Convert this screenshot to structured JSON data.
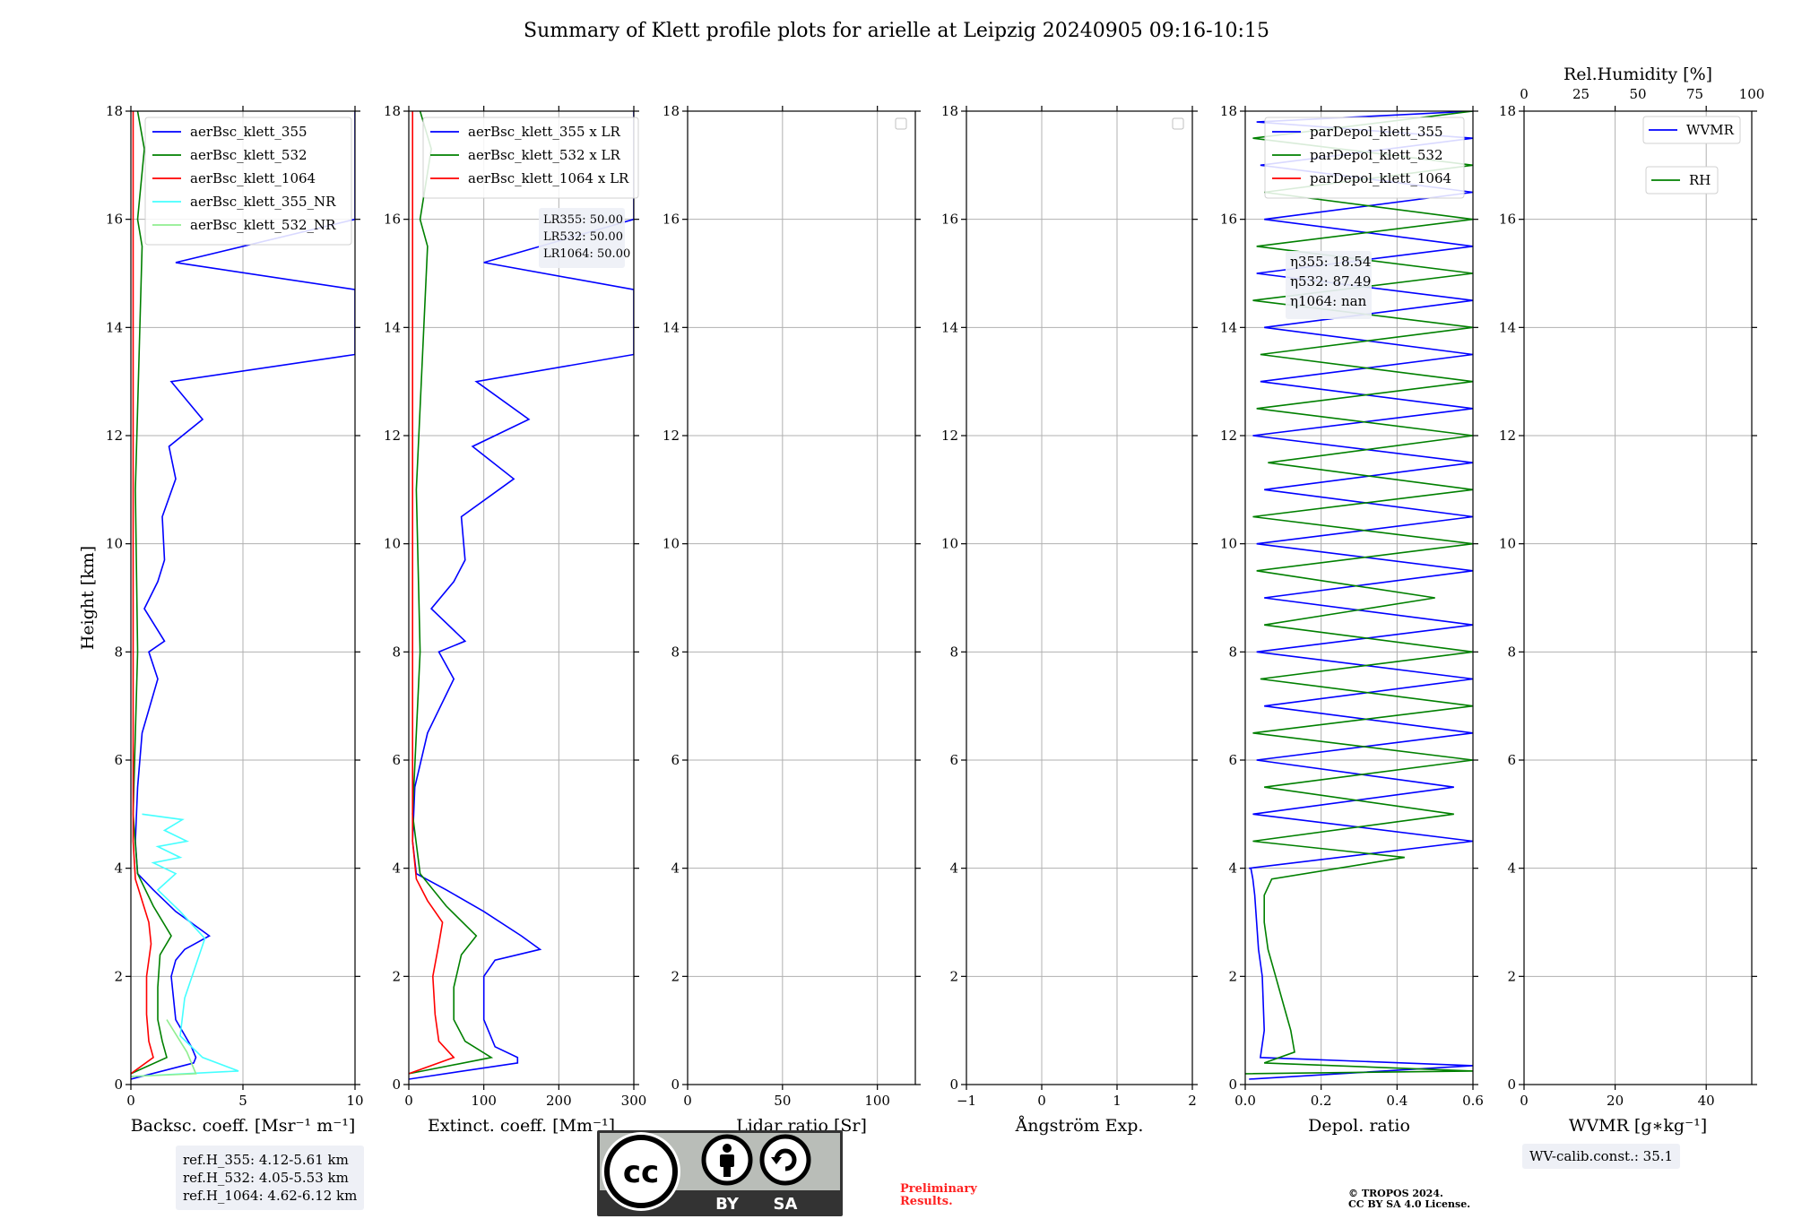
{
  "chart_data": {
    "type": "line",
    "title": "Summary of Klett profile plots for arielle at Leipzig 20240905 09:16-10:15",
    "ylabel": "Height [km]",
    "ylim": [
      0,
      18
    ],
    "yticks": [
      "0",
      "2",
      "4",
      "6",
      "8",
      "10",
      "12",
      "14",
      "16",
      "18"
    ],
    "colors": {
      "c355": "#0000ff",
      "c532": "#008000",
      "c1064": "#ff0000",
      "c355nr": "#44ffff",
      "c532nr": "#90ee90"
    },
    "panels": [
      {
        "id": "bsc",
        "xlabel": "Backsc. coeff. [Msr⁻¹ m⁻¹]",
        "xlim": [
          0,
          10
        ],
        "xticks": [
          "0",
          "5",
          "10"
        ],
        "legend": [
          "aerBsc_klett_355",
          "aerBsc_klett_532",
          "aerBsc_klett_1064",
          "aerBsc_klett_355_NR",
          "aerBsc_klett_532_NR"
        ],
        "series": [
          {
            "name": "aerBsc_klett_355",
            "color": "#0000ff",
            "x": [
              0,
              2.8,
              2.9,
              2.7,
              2.0,
              1.8,
              2.0,
              2.4,
              3.5,
              2.0,
              1.0,
              0.3,
              0.2,
              0.3,
              0.5,
              1.2,
              0.8,
              1.5,
              0.6,
              1.2,
              1.5,
              1.4,
              2.0,
              1.7,
              3.2,
              1.8,
              10,
              10,
              10,
              2.0,
              10,
              10
            ],
            "y": [
              0.1,
              0.4,
              0.5,
              0.7,
              1.2,
              2.0,
              2.3,
              2.5,
              2.75,
              3.2,
              3.6,
              3.9,
              4.5,
              5.5,
              6.5,
              7.5,
              8.0,
              8.2,
              8.8,
              9.3,
              9.7,
              10.5,
              11.2,
              11.8,
              12.3,
              13.0,
              13.5,
              14.0,
              14.7,
              15.2,
              16.0,
              18.0
            ]
          },
          {
            "name": "aerBsc_klett_532",
            "color": "#008000",
            "x": [
              0,
              1.6,
              1.4,
              1.2,
              1.2,
              1.3,
              1.8,
              1.0,
              0.3,
              0.1,
              0.3,
              0.2,
              0.5,
              0.3,
              0.6,
              0.3
            ],
            "y": [
              0.2,
              0.5,
              0.8,
              1.2,
              1.8,
              2.4,
              2.75,
              3.3,
              3.9,
              5.0,
              8.0,
              11.0,
              15.5,
              16.0,
              17.3,
              18.0
            ]
          },
          {
            "name": "aerBsc_klett_1064",
            "color": "#ff0000",
            "x": [
              0,
              1.0,
              0.8,
              0.7,
              0.7,
              0.9,
              0.8,
              0.5,
              0.2,
              0.1,
              0.1
            ],
            "y": [
              0.2,
              0.5,
              0.8,
              1.3,
              2.0,
              2.6,
              3.0,
              3.4,
              3.8,
              4.5,
              18.0
            ]
          },
          {
            "name": "aerBsc_klett_355_NR",
            "color": "#44ffff",
            "x": [
              0,
              4.8,
              3.2,
              2.2,
              2.4,
              3.3,
              2.2,
              1.2,
              2.0,
              1.0,
              2.2,
              1.2,
              2.5,
              1.5,
              2.3,
              0.5
            ],
            "y": [
              0.15,
              0.25,
              0.5,
              0.9,
              1.6,
              2.7,
              3.2,
              3.6,
              3.9,
              4.1,
              4.2,
              4.4,
              4.5,
              4.7,
              4.9,
              5.0
            ]
          },
          {
            "name": "aerBsc_klett_532_NR",
            "color": "#90ee90",
            "x": [
              0,
              2.9,
              2.5,
              1.6
            ],
            "y": [
              0.15,
              0.2,
              0.6,
              1.2
            ]
          }
        ]
      },
      {
        "id": "ext",
        "xlabel": "Extinct. coeff. [Mm⁻¹]",
        "xlim": [
          0,
          300
        ],
        "xticks": [
          "0",
          "100",
          "200",
          "300"
        ],
        "legend": [
          "aerBsc_klett_355 x LR",
          "aerBsc_klett_532 x LR",
          "aerBsc_klett_1064 x LR"
        ],
        "annotation": [
          "LR355: 50.00",
          "LR532: 50.00",
          "LR1064: 50.00"
        ],
        "series": [
          {
            "name": "aerBsc_klett_355 x LR",
            "color": "#0000ff",
            "x": [
              0,
              145,
              145,
              115,
              100,
              100,
              115,
              175,
              150,
              100,
              50,
              10,
              5,
              8,
              25,
              60,
              40,
              75,
              30,
              60,
              75,
              70,
              140,
              85,
              160,
              90,
              300,
              300,
              300,
              100,
              300,
              300
            ],
            "y": [
              0.1,
              0.4,
              0.5,
              0.7,
              1.2,
              2.0,
              2.3,
              2.5,
              2.75,
              3.2,
              3.6,
              3.9,
              4.5,
              5.5,
              6.5,
              7.5,
              8.0,
              8.2,
              8.8,
              9.3,
              9.7,
              10.5,
              11.2,
              11.8,
              12.3,
              13.0,
              13.5,
              14.0,
              14.7,
              15.2,
              16.0,
              18.0
            ]
          },
          {
            "name": "aerBsc_klett_532 x LR",
            "color": "#008000",
            "x": [
              0,
              110,
              75,
              60,
              60,
              70,
              90,
              50,
              15,
              5,
              15,
              10,
              25,
              15,
              30,
              15
            ],
            "y": [
              0.2,
              0.5,
              0.8,
              1.2,
              1.8,
              2.4,
              2.75,
              3.3,
              3.9,
              5.0,
              8.0,
              11.0,
              15.5,
              16.0,
              17.3,
              18.0
            ]
          },
          {
            "name": "aerBsc_klett_1064 x LR",
            "color": "#ff0000",
            "x": [
              0,
              60,
              40,
              35,
              32,
              40,
              45,
              25,
              10,
              5,
              5
            ],
            "y": [
              0.2,
              0.5,
              0.8,
              1.3,
              2.0,
              2.6,
              3.0,
              3.4,
              3.8,
              4.5,
              18.0
            ]
          }
        ]
      },
      {
        "id": "lr",
        "xlabel": "Lidar ratio [Sr]",
        "xlim": [
          0,
          120
        ],
        "xticks": [
          "0",
          "50",
          "100"
        ],
        "legend": [],
        "series": []
      },
      {
        "id": "ang",
        "xlabel": "Ångström Exp.",
        "xlim": [
          -1,
          2
        ],
        "xticks": [
          "−1",
          "0",
          "1",
          "2"
        ],
        "legend": [],
        "series": []
      },
      {
        "id": "dep",
        "xlabel": "Depol. ratio",
        "xlim": [
          0,
          0.6
        ],
        "xticks": [
          "0.0",
          "0.2",
          "0.4",
          "0.6"
        ],
        "legend": [
          "parDepol_klett_355",
          "parDepol_klett_532",
          "parDepol_klett_1064"
        ],
        "annotation": [
          "η355: 18.54",
          "η532: 87.49",
          "η1064: nan"
        ],
        "series": [
          {
            "name": "parDepol_klett_355",
            "color": "#0000ff",
            "x": [
              0.01,
              0.6,
              0.04,
              0.05,
              0.045,
              0.035,
              0.03,
              0.025,
              0.02,
              0.015,
              0.01,
              0.6,
              0.02,
              0.55,
              0.03,
              0.6,
              0.05,
              0.6,
              0.03,
              0.6,
              0.05,
              0.6,
              0.03,
              0.6,
              0.05,
              0.6,
              0.02,
              0.6,
              0.04,
              0.6,
              0.05,
              0.6,
              0.03,
              0.6,
              0.05,
              0.6,
              0.04,
              0.6,
              0.03,
              0.6
            ],
            "y": [
              0.1,
              0.35,
              0.5,
              1.0,
              2.0,
              2.5,
              3.0,
              3.5,
              3.8,
              4.0,
              4.0,
              4.5,
              5.0,
              5.5,
              6.0,
              6.5,
              7.0,
              7.5,
              8.0,
              8.5,
              9.0,
              9.5,
              10.0,
              10.5,
              11.0,
              11.5,
              12.0,
              12.5,
              13.0,
              13.5,
              14.0,
              14.5,
              15.0,
              15.5,
              16.0,
              16.5,
              17.0,
              17.5,
              17.8,
              18.0
            ]
          },
          {
            "name": "parDepol_klett_532",
            "color": "#008000",
            "x": [
              0.0,
              0.6,
              0.05,
              0.13,
              0.12,
              0.1,
              0.08,
              0.06,
              0.05,
              0.05,
              0.07,
              0.42,
              0.02,
              0.55,
              0.05,
              0.6,
              0.02,
              0.6,
              0.04,
              0.6,
              0.05,
              0.5,
              0.03,
              0.6,
              0.02,
              0.6,
              0.06,
              0.6,
              0.03,
              0.6,
              0.04,
              0.6,
              0.02,
              0.6,
              0.03,
              0.6,
              0.05,
              0.6,
              0.02,
              0.6
            ],
            "y": [
              0.2,
              0.25,
              0.4,
              0.6,
              1.0,
              1.5,
              2.0,
              2.5,
              3.0,
              3.5,
              3.8,
              4.2,
              4.5,
              5.0,
              5.5,
              6.0,
              6.5,
              7.0,
              7.5,
              8.0,
              8.5,
              9.0,
              9.5,
              10.0,
              10.5,
              11.0,
              11.5,
              12.0,
              12.5,
              13.0,
              13.5,
              14.0,
              14.5,
              15.0,
              15.5,
              16.0,
              16.5,
              17.0,
              17.5,
              18.0
            ]
          }
        ]
      },
      {
        "id": "wv",
        "xlabel": "WVMR [g∗kg⁻¹]",
        "xlim": [
          0,
          50
        ],
        "xticks": [
          "0",
          "20",
          "40"
        ],
        "top_label": "Rel.Humidity [%]",
        "top_xticks": [
          "0",
          "25",
          "50",
          "75",
          "100"
        ],
        "legend": [
          "WVMR",
          "RH"
        ],
        "series": []
      }
    ]
  },
  "refbox": [
    "ref.H_355: 4.12-5.61 km",
    "ref.H_532: 4.05-5.53 km",
    "ref.H_1064: 4.62-6.12 km"
  ],
  "wvcalib": "WV-calib.const.: 35.1",
  "prelim": [
    "Preliminary",
    "Results."
  ],
  "copyright": [
    "© TROPOS 2024.",
    "CC BY SA 4.0 License."
  ],
  "cc_badge": {
    "main": "cc",
    "by": "BY",
    "sa": "SA"
  }
}
